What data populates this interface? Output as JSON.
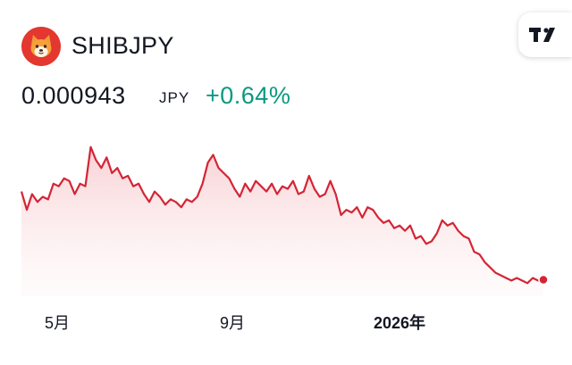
{
  "header": {
    "symbol": "SHIBJPY",
    "logo_icon": "shiba-inu-icon",
    "brand_icon": "tradingview-logo-icon"
  },
  "quote": {
    "price": "0.000943",
    "currency": "JPY",
    "change": "+0.64%"
  },
  "colors": {
    "line": "#d32535",
    "change_positive": "#089981",
    "logo_bg": "#e3372f",
    "fill_top": "#f7c9cd"
  },
  "chart_data": {
    "type": "area",
    "x_ticks": [
      "5月",
      "9月",
      "2026年"
    ],
    "grid": false,
    "values": [
      0.00128,
      0.00121,
      0.00127,
      0.00124,
      0.00126,
      0.00125,
      0.00131,
      0.0013,
      0.00133,
      0.00132,
      0.00127,
      0.00131,
      0.0013,
      0.00145,
      0.0014,
      0.00137,
      0.00141,
      0.00135,
      0.00137,
      0.00133,
      0.00134,
      0.0013,
      0.00131,
      0.00127,
      0.00124,
      0.00128,
      0.00126,
      0.00123,
      0.00125,
      0.00124,
      0.00122,
      0.00125,
      0.00124,
      0.00126,
      0.00131,
      0.00139,
      0.00142,
      0.00137,
      0.00135,
      0.00133,
      0.00129,
      0.00126,
      0.00131,
      0.00128,
      0.00132,
      0.0013,
      0.00128,
      0.00131,
      0.00127,
      0.0013,
      0.00129,
      0.00132,
      0.00127,
      0.00128,
      0.00134,
      0.00129,
      0.00126,
      0.00127,
      0.00132,
      0.00127,
      0.00119,
      0.00121,
      0.0012,
      0.00122,
      0.00118,
      0.00122,
      0.00121,
      0.00118,
      0.00116,
      0.00117,
      0.00114,
      0.00115,
      0.00113,
      0.00115,
      0.0011,
      0.00111,
      0.00108,
      0.00109,
      0.00112,
      0.00117,
      0.00115,
      0.00116,
      0.00113,
      0.00111,
      0.0011,
      0.00105,
      0.00104,
      0.00101,
      0.00099,
      0.00097,
      0.00096,
      0.00095,
      0.00094,
      0.00095,
      0.00094,
      0.00093,
      0.00095,
      0.00094,
      0.000943
    ],
    "y_range": [
      0.00088,
      0.0015
    ],
    "last_value": "0.000943"
  }
}
